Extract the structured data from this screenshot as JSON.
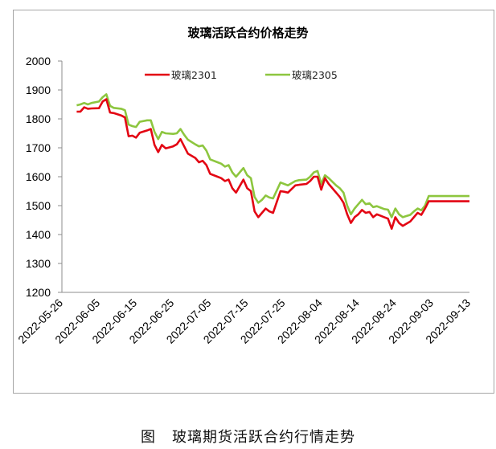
{
  "chart_data": {
    "type": "line",
    "title": "玻璃活跃合约价格走势",
    "xlabel": "",
    "ylabel": "",
    "ylim": [
      1200,
      2000
    ],
    "yticks": [
      1200,
      1300,
      1400,
      1500,
      1600,
      1700,
      1800,
      1900,
      2000
    ],
    "xtick_labels": [
      "2022-05-26",
      "2022-06-05",
      "2022-06-15",
      "2022-06-25",
      "2022-07-05",
      "2022-07-15",
      "2022-07-25",
      "2022-08-04",
      "2022-08-14",
      "2022-08-24",
      "2022-09-03",
      "2022-09-13"
    ],
    "x_start": "2022-05-26",
    "x_end": "2022-09-13",
    "grid": false,
    "legend_position": "top",
    "series": [
      {
        "name": "玻璃2301",
        "color": "#e30613",
        "days": [
          4,
          5,
          6,
          7,
          8,
          10,
          11,
          12,
          13,
          14,
          16,
          17,
          18,
          19,
          20,
          21,
          23,
          24,
          25,
          26,
          27,
          28,
          30,
          31,
          32,
          33,
          34,
          36,
          37,
          38,
          39,
          40,
          42,
          43,
          44,
          45,
          46,
          47,
          49,
          50,
          51,
          52,
          53,
          54,
          55,
          56,
          57,
          59,
          60,
          61,
          63,
          64,
          66,
          67,
          68,
          69,
          70,
          71,
          72,
          74,
          75,
          76,
          77,
          78,
          79,
          80,
          81,
          82,
          83,
          84,
          85,
          86,
          87,
          88,
          89,
          90,
          91,
          92,
          94,
          95,
          96,
          97,
          98,
          99,
          102,
          110
        ],
        "values": [
          1825,
          1825,
          1840,
          1835,
          1836,
          1837,
          1860,
          1868,
          1822,
          1820,
          1812,
          1805,
          1740,
          1742,
          1735,
          1752,
          1760,
          1765,
          1710,
          1685,
          1710,
          1698,
          1705,
          1712,
          1730,
          1705,
          1680,
          1665,
          1650,
          1655,
          1640,
          1610,
          1600,
          1595,
          1585,
          1590,
          1560,
          1545,
          1590,
          1560,
          1550,
          1480,
          1460,
          1475,
          1490,
          1480,
          1475,
          1550,
          1548,
          1545,
          1570,
          1572,
          1575,
          1585,
          1600,
          1600,
          1555,
          1595,
          1575,
          1545,
          1530,
          1510,
          1470,
          1440,
          1460,
          1470,
          1485,
          1475,
          1478,
          1460,
          1470,
          1465,
          1460,
          1455,
          1420,
          1460,
          1440,
          1430,
          1445,
          1460,
          1475,
          1468,
          1490,
          1515,
          1515,
          1515
        ]
      },
      {
        "name": "玻璃2305",
        "color": "#8dc63f",
        "days": [
          4,
          5,
          6,
          7,
          8,
          10,
          11,
          12,
          13,
          14,
          16,
          17,
          18,
          19,
          20,
          21,
          23,
          24,
          25,
          26,
          27,
          28,
          30,
          31,
          32,
          33,
          34,
          36,
          37,
          38,
          39,
          40,
          42,
          43,
          44,
          45,
          46,
          47,
          49,
          50,
          51,
          52,
          53,
          54,
          55,
          56,
          57,
          59,
          60,
          61,
          63,
          64,
          66,
          67,
          68,
          69,
          70,
          71,
          72,
          74,
          75,
          76,
          77,
          78,
          79,
          80,
          81,
          82,
          83,
          84,
          85,
          86,
          87,
          88,
          89,
          90,
          91,
          92,
          94,
          95,
          96,
          97,
          98,
          99,
          102,
          110
        ],
        "values": [
          1847,
          1850,
          1855,
          1850,
          1855,
          1860,
          1875,
          1885,
          1845,
          1838,
          1835,
          1830,
          1780,
          1775,
          1772,
          1790,
          1795,
          1795,
          1755,
          1730,
          1755,
          1750,
          1748,
          1750,
          1765,
          1745,
          1728,
          1712,
          1705,
          1708,
          1690,
          1660,
          1650,
          1645,
          1635,
          1640,
          1615,
          1600,
          1630,
          1605,
          1595,
          1530,
          1510,
          1520,
          1535,
          1528,
          1525,
          1580,
          1575,
          1570,
          1585,
          1588,
          1590,
          1600,
          1615,
          1620,
          1575,
          1605,
          1595,
          1570,
          1560,
          1545,
          1500,
          1470,
          1490,
          1505,
          1520,
          1505,
          1508,
          1495,
          1498,
          1493,
          1488,
          1486,
          1460,
          1490,
          1470,
          1460,
          1468,
          1480,
          1490,
          1484,
          1500,
          1533,
          1533,
          1533
        ]
      }
    ]
  },
  "caption": {
    "figure_label": "图",
    "text": "玻璃期货活跃合约行情走势"
  }
}
